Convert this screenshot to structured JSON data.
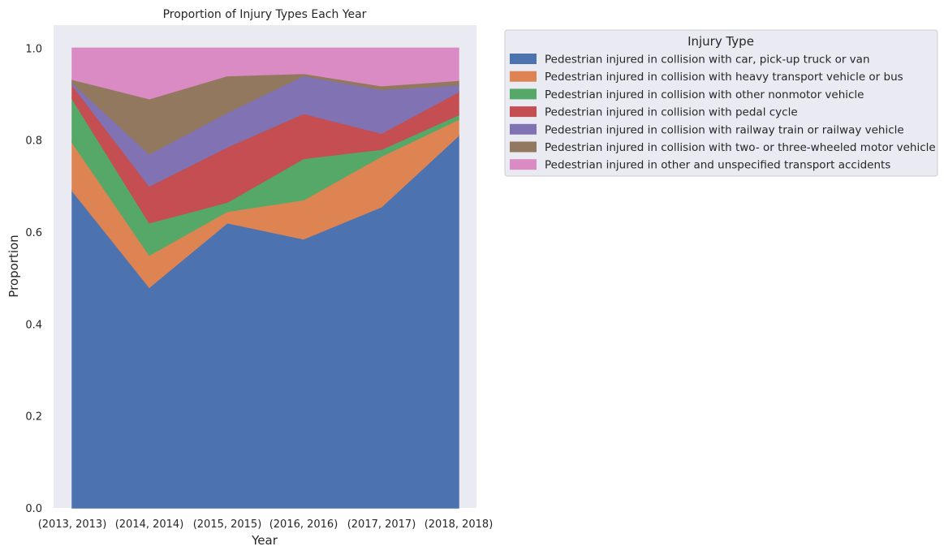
{
  "chart_data": {
    "type": "area",
    "stacked": true,
    "title": "Proportion of Injury Types Each Year",
    "xlabel": "Year",
    "ylabel": "Proportion",
    "categories": [
      "(2013, 2013)",
      "(2014, 2014)",
      "(2015, 2015)",
      "(2016, 2016)",
      "(2017, 2017)",
      "(2018, 2018)"
    ],
    "ylim": [
      0,
      1.05
    ],
    "yticks": [
      "0.0",
      "0.2",
      "0.4",
      "0.6",
      "0.8",
      "1.0"
    ],
    "ytick_values": [
      0,
      0.2,
      0.4,
      0.6,
      0.8,
      1.0
    ],
    "grid": false,
    "legend": {
      "title": "Injury Type",
      "placement": "outside-upper-right"
    },
    "series": [
      {
        "name": "Pedestrian injured in collision with car, pick-up truck or van",
        "color": "#4c72b0",
        "values": [
          0.69,
          0.48,
          0.62,
          0.585,
          0.655,
          0.81
        ]
      },
      {
        "name": "Pedestrian injured in collision with heavy transport vehicle or bus",
        "color": "#dd8452",
        "values": [
          0.105,
          0.07,
          0.025,
          0.085,
          0.11,
          0.035
        ]
      },
      {
        "name": "Pedestrian injured in collision with other nonmotor vehicle",
        "color": "#55a868",
        "values": [
          0.095,
          0.07,
          0.02,
          0.09,
          0.015,
          0.01
        ]
      },
      {
        "name": "Pedestrian injured in collision with pedal cycle",
        "color": "#c44e52",
        "values": [
          0.03,
          0.08,
          0.12,
          0.098,
          0.035,
          0.05
        ]
      },
      {
        "name": "Pedestrian injured in collision with railway train or railway vehicle",
        "color": "#8172b3",
        "values": [
          0.005,
          0.07,
          0.075,
          0.082,
          0.095,
          0.015
        ]
      },
      {
        "name": "Pedestrian injured in collision with two- or three-wheeled motor vehicle",
        "color": "#937860",
        "values": [
          0.007,
          0.12,
          0.08,
          0.005,
          0.008,
          0.01
        ]
      },
      {
        "name": "Pedestrian injured in other and unspecified transport accidents",
        "color": "#da8bc3",
        "values": [
          0.068,
          0.11,
          0.06,
          0.055,
          0.082,
          0.07
        ]
      }
    ]
  }
}
